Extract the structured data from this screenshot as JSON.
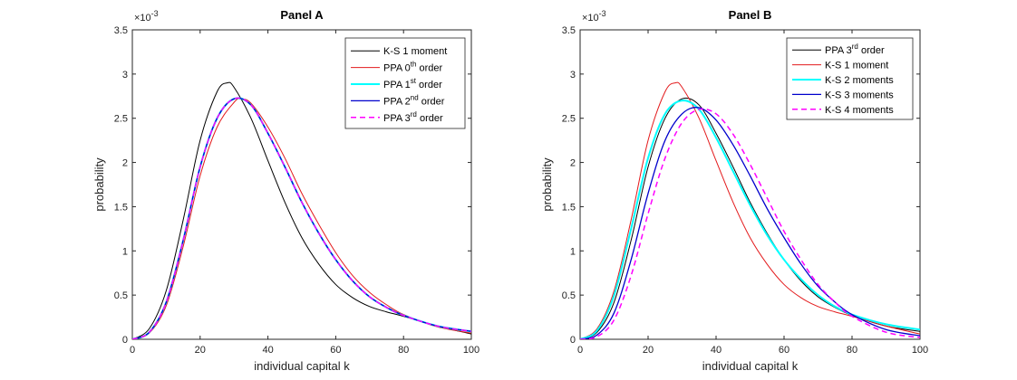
{
  "chart_data": [
    {
      "type": "line",
      "title": "Panel A",
      "xlabel": "individual capital k",
      "ylabel": "probability",
      "xlim": [
        0,
        100
      ],
      "ylim": [
        0,
        3.5
      ],
      "y_exponent_label": "×10",
      "y_exponent": "-3",
      "xticks": [
        "0",
        "20",
        "40",
        "60",
        "80",
        "100"
      ],
      "yticks": [
        "0",
        "0.5",
        "1",
        "1.5",
        "2",
        "2.5",
        "3",
        "3.5"
      ],
      "legend_position": "top-right",
      "series": [
        {
          "name": "K-S 1 moment",
          "name_main": "K-S 1 moment",
          "name_sup": "",
          "name_tail": "",
          "color": "#000000",
          "dash": "",
          "width": 1,
          "x": [
            0,
            5,
            10,
            15,
            20,
            25,
            28,
            30,
            35,
            40,
            45,
            50,
            55,
            60,
            65,
            70,
            75,
            80,
            90,
            100
          ],
          "y": [
            0,
            0.12,
            0.55,
            1.35,
            2.25,
            2.8,
            2.9,
            2.85,
            2.5,
            2.02,
            1.55,
            1.15,
            0.85,
            0.62,
            0.47,
            0.37,
            0.31,
            0.26,
            0.15,
            0.06
          ]
        },
        {
          "name": "PPA 0th order",
          "name_main": "PPA 0",
          "name_sup": "th",
          "name_tail": " order",
          "color": "#e31a1c",
          "dash": "",
          "width": 1,
          "x": [
            0,
            5,
            10,
            15,
            20,
            25,
            30,
            32,
            35,
            40,
            45,
            50,
            55,
            60,
            65,
            70,
            75,
            80,
            90,
            100
          ],
          "y": [
            0,
            0.07,
            0.38,
            1.05,
            1.85,
            2.4,
            2.68,
            2.72,
            2.67,
            2.4,
            2.05,
            1.65,
            1.3,
            0.98,
            0.72,
            0.53,
            0.39,
            0.28,
            0.14,
            0.07
          ]
        },
        {
          "name": "PPA 1st order",
          "name_main": "PPA 1",
          "name_sup": "st",
          "name_tail": " order",
          "color": "#00ffff",
          "dash": "",
          "width": 2,
          "x": [
            0,
            5,
            10,
            15,
            20,
            25,
            30,
            35,
            40,
            45,
            50,
            55,
            60,
            65,
            70,
            75,
            80,
            90,
            100
          ],
          "y": [
            0,
            0.08,
            0.42,
            1.12,
            1.95,
            2.5,
            2.72,
            2.65,
            2.33,
            1.95,
            1.55,
            1.2,
            0.9,
            0.66,
            0.48,
            0.36,
            0.27,
            0.15,
            0.09
          ]
        },
        {
          "name": "PPA 2nd order",
          "name_main": "PPA 2",
          "name_sup": "nd",
          "name_tail": " order",
          "color": "#0000cc",
          "dash": "",
          "width": 1.3,
          "x": [
            0,
            5,
            10,
            15,
            20,
            25,
            30,
            35,
            40,
            45,
            50,
            55,
            60,
            65,
            70,
            75,
            80,
            90,
            100
          ],
          "y": [
            0,
            0.08,
            0.42,
            1.12,
            1.95,
            2.5,
            2.72,
            2.65,
            2.33,
            1.95,
            1.55,
            1.2,
            0.9,
            0.66,
            0.48,
            0.36,
            0.27,
            0.15,
            0.09
          ]
        },
        {
          "name": "PPA 3rd order",
          "name_main": "PPA 3",
          "name_sup": "rd",
          "name_tail": " order",
          "color": "#ff00ff",
          "dash": "6,4",
          "width": 1.5,
          "x": [
            0,
            5,
            10,
            15,
            20,
            25,
            30,
            35,
            40,
            45,
            50,
            55,
            60,
            65,
            70,
            75,
            80,
            90,
            100
          ],
          "y": [
            0,
            0.08,
            0.42,
            1.12,
            1.95,
            2.5,
            2.72,
            2.65,
            2.33,
            1.95,
            1.55,
            1.2,
            0.9,
            0.66,
            0.48,
            0.36,
            0.27,
            0.15,
            0.09
          ]
        }
      ]
    },
    {
      "type": "line",
      "title": "Panel B",
      "xlabel": "individual capital k",
      "ylabel": "probability",
      "xlim": [
        0,
        100
      ],
      "ylim": [
        0,
        3.5
      ],
      "y_exponent_label": "×10",
      "y_exponent": "-3",
      "xticks": [
        "0",
        "20",
        "40",
        "60",
        "80",
        "100"
      ],
      "yticks": [
        "0",
        "0.5",
        "1",
        "1.5",
        "2",
        "2.5",
        "3",
        "3.5"
      ],
      "legend_position": "top-right",
      "series": [
        {
          "name": "PPA 3rd order",
          "name_main": "PPA 3",
          "name_sup": "rd",
          "name_tail": " order",
          "color": "#000000",
          "dash": "",
          "width": 1,
          "x": [
            0,
            5,
            10,
            15,
            20,
            25,
            30,
            35,
            40,
            45,
            50,
            55,
            60,
            65,
            70,
            75,
            80,
            90,
            100
          ],
          "y": [
            0,
            0.08,
            0.42,
            1.12,
            1.95,
            2.5,
            2.72,
            2.65,
            2.33,
            1.95,
            1.55,
            1.2,
            0.9,
            0.66,
            0.48,
            0.36,
            0.27,
            0.15,
            0.09
          ]
        },
        {
          "name": "K-S 1 moment",
          "name_main": "K-S 1 moment",
          "name_sup": "",
          "name_tail": "",
          "color": "#e31a1c",
          "dash": "",
          "width": 1,
          "x": [
            0,
            5,
            10,
            15,
            20,
            25,
            28,
            30,
            35,
            40,
            45,
            50,
            55,
            60,
            65,
            70,
            75,
            80,
            90,
            100
          ],
          "y": [
            0,
            0.12,
            0.55,
            1.35,
            2.25,
            2.8,
            2.9,
            2.85,
            2.5,
            2.02,
            1.55,
            1.15,
            0.85,
            0.62,
            0.47,
            0.37,
            0.31,
            0.26,
            0.15,
            0.06
          ]
        },
        {
          "name": "K-S 2 moments",
          "name_main": "K-S 2 moments",
          "name_sup": "",
          "name_tail": "",
          "color": "#00ffff",
          "dash": "",
          "width": 2,
          "x": [
            0,
            5,
            10,
            15,
            20,
            25,
            30,
            35,
            40,
            45,
            50,
            55,
            60,
            65,
            70,
            75,
            80,
            90,
            100
          ],
          "y": [
            0,
            0.1,
            0.5,
            1.25,
            2.05,
            2.55,
            2.7,
            2.6,
            2.28,
            1.9,
            1.52,
            1.18,
            0.9,
            0.68,
            0.5,
            0.37,
            0.28,
            0.17,
            0.11
          ]
        },
        {
          "name": "K-S 3 moments",
          "name_main": "K-S 3 moments",
          "name_sup": "",
          "name_tail": "",
          "color": "#0000cc",
          "dash": "",
          "width": 1.3,
          "x": [
            0,
            5,
            10,
            15,
            20,
            25,
            30,
            35,
            40,
            45,
            50,
            55,
            60,
            65,
            70,
            75,
            80,
            90,
            100
          ],
          "y": [
            0,
            0.05,
            0.3,
            0.9,
            1.65,
            2.25,
            2.55,
            2.62,
            2.48,
            2.2,
            1.85,
            1.48,
            1.15,
            0.85,
            0.6,
            0.42,
            0.28,
            0.11,
            0.04
          ]
        },
        {
          "name": "K-S 4 moments",
          "name_main": "K-S 4 moments",
          "name_sup": "",
          "name_tail": "",
          "color": "#ff00ff",
          "dash": "6,4",
          "width": 1.5,
          "x": [
            0,
            5,
            10,
            15,
            20,
            25,
            30,
            35,
            40,
            45,
            50,
            55,
            60,
            65,
            70,
            75,
            80,
            90,
            100
          ],
          "y": [
            0,
            0.03,
            0.22,
            0.72,
            1.42,
            2.05,
            2.45,
            2.6,
            2.55,
            2.32,
            1.98,
            1.6,
            1.22,
            0.9,
            0.62,
            0.42,
            0.26,
            0.08,
            0.02
          ]
        }
      ]
    }
  ]
}
